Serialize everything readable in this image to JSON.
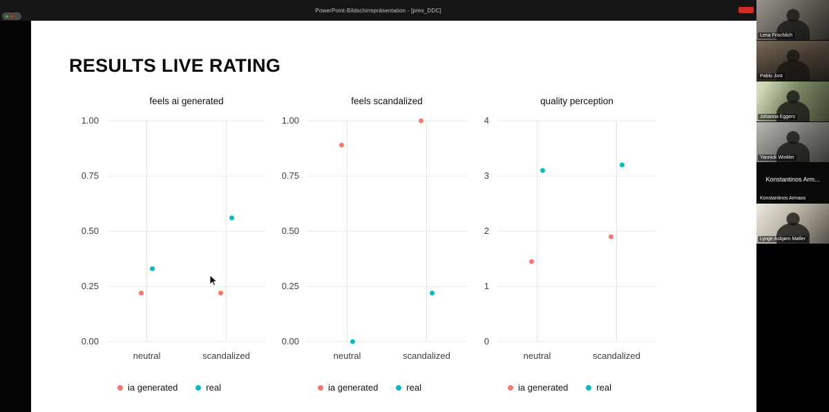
{
  "share_bar": {
    "title": "PowerPoint-Bildschirmpräsentation - [pres_DDC]"
  },
  "slide": {
    "title": "RESULTS LIVE RATING"
  },
  "chart_data": [
    {
      "type": "scatter",
      "title": "feels ai generated",
      "categories": [
        "neutral",
        "scandalized"
      ],
      "ylim": [
        0,
        1
      ],
      "yticks": [
        0,
        0.25,
        0.5,
        0.75,
        1
      ],
      "ytick_labels": [
        "0.00",
        "0.25",
        "0.50",
        "0.75",
        "1.00"
      ],
      "grid": true,
      "legend_position": "bottom",
      "series": [
        {
          "name": "ia generated",
          "color": "#F8766D",
          "values": [
            0.22,
            0.22
          ]
        },
        {
          "name": "real",
          "color": "#00BFC4",
          "values": [
            0.33,
            0.56
          ]
        }
      ]
    },
    {
      "type": "scatter",
      "title": "feels scandalized",
      "categories": [
        "neutral",
        "scandalized"
      ],
      "ylim": [
        0,
        1
      ],
      "yticks": [
        0,
        0.25,
        0.5,
        0.75,
        1
      ],
      "ytick_labels": [
        "0.00",
        "0.25",
        "0.50",
        "0.75",
        "1.00"
      ],
      "grid": true,
      "legend_position": "bottom",
      "series": [
        {
          "name": "ia generated",
          "color": "#F8766D",
          "values": [
            0.89,
            1.0
          ]
        },
        {
          "name": "real",
          "color": "#00BFC4",
          "values": [
            0.0,
            0.22
          ]
        }
      ]
    },
    {
      "type": "scatter",
      "title": "quality perception",
      "categories": [
        "neutral",
        "scandalized"
      ],
      "ylim": [
        0,
        4
      ],
      "yticks": [
        0,
        1,
        2,
        3,
        4
      ],
      "ytick_labels": [
        "0",
        "1",
        "2",
        "3",
        "4"
      ],
      "grid": true,
      "legend_position": "bottom",
      "series": [
        {
          "name": "ia generated",
          "color": "#F8766D",
          "values": [
            1.45,
            1.9
          ]
        },
        {
          "name": "real",
          "color": "#00BFC4",
          "values": [
            3.1,
            3.2
          ]
        }
      ]
    }
  ],
  "participants": [
    {
      "name": "Lena Frischlich"
    },
    {
      "name": "Pablo Jost"
    },
    {
      "name": "Johanna Eggers"
    },
    {
      "name": "Yannick Winkler"
    },
    {
      "display": "Konstantinos  Arm...",
      "name": "Konstantinos Armaos"
    },
    {
      "name": "Lynge Asbjørn Møller"
    }
  ]
}
